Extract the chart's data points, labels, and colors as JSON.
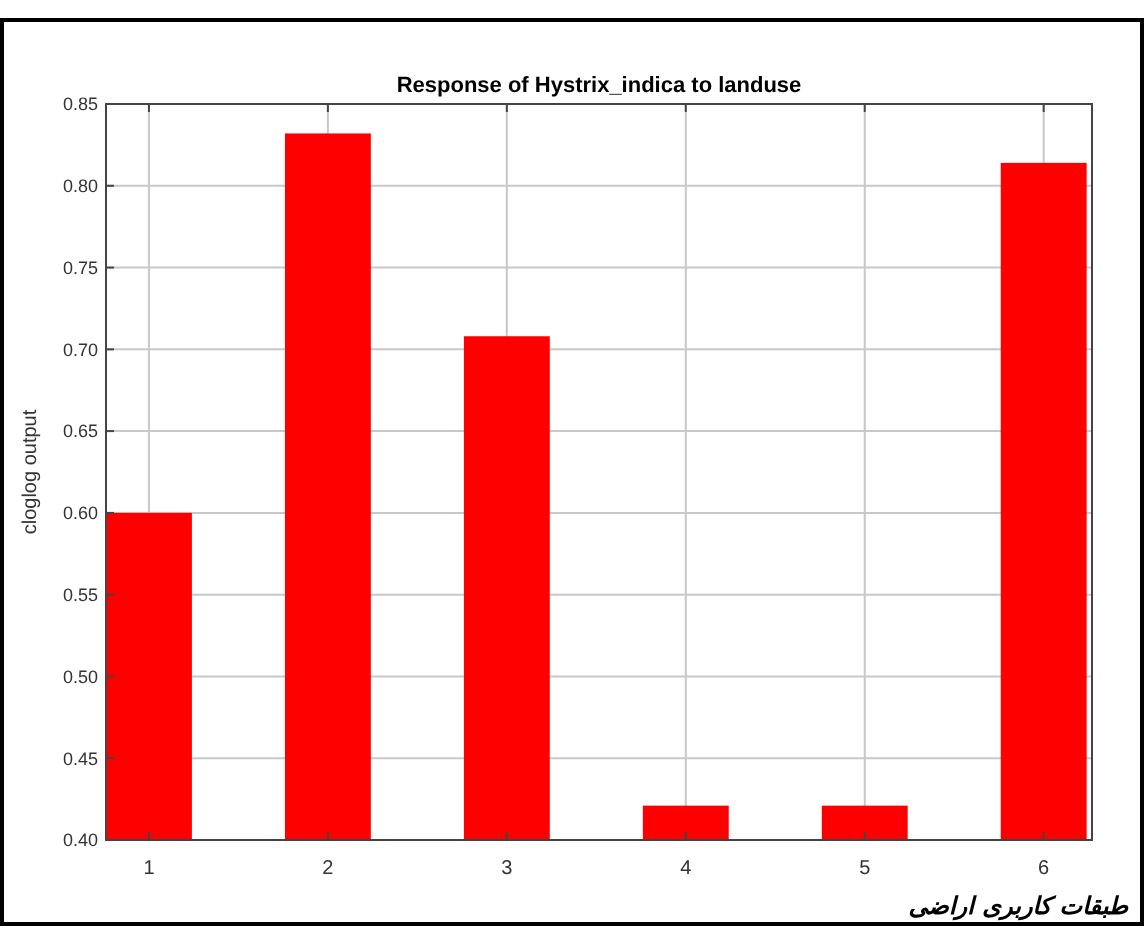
{
  "chart_data": {
    "type": "bar",
    "title": "Response of Hystrix_indica to landuse",
    "xlabel": "طبقات کاربری اراضی",
    "ylabel": "cloglog output",
    "categories": [
      "1",
      "2",
      "3",
      "4",
      "5",
      "6"
    ],
    "values": [
      0.6,
      0.832,
      0.708,
      0.421,
      0.421,
      0.814
    ],
    "color": "#ff0000",
    "ylim": [
      0.4,
      0.85
    ],
    "yticks": [
      {
        "value": 0.4,
        "label": "0.40"
      },
      {
        "value": 0.45,
        "label": "0.45"
      },
      {
        "value": 0.5,
        "label": "0.50"
      },
      {
        "value": 0.55,
        "label": "0.55"
      },
      {
        "value": 0.6,
        "label": "0.60"
      },
      {
        "value": 0.65,
        "label": "0.65"
      },
      {
        "value": 0.7,
        "label": "0.70"
      },
      {
        "value": 0.75,
        "label": "0.75"
      },
      {
        "value": 0.8,
        "label": "0.80"
      },
      {
        "value": 0.85,
        "label": "0.85"
      }
    ],
    "grid": true
  }
}
